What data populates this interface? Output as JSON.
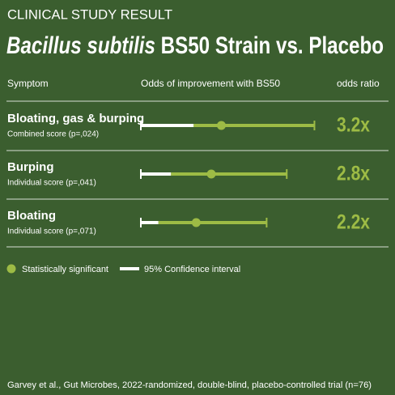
{
  "header": {
    "kicker": "CLINICAL STUDY RESULT",
    "title_italic": "Bacillus subtilis",
    "title_rest": " BS50 Strain vs. Placebo"
  },
  "chart_data": {
    "type": "forest",
    "columns": [
      "Symptom",
      "Odds of improvement with BS50",
      "odds ratio"
    ],
    "categories": [
      "Bloating, gas & burping",
      "Burping",
      "Bloating"
    ],
    "subtitles": [
      "Combined score (p=,024)",
      "Individual score (p=,041)",
      "Individual score (p=,071)"
    ],
    "values": [
      3.2,
      2.8,
      2.2
    ],
    "value_labels": [
      "3.2x",
      "2.8x",
      "2.2x"
    ],
    "ci_low": [
      2.1,
      1.2,
      0.7
    ],
    "ci_high": [
      6.9,
      5.8,
      5.0
    ],
    "xlim": [
      0,
      7.4
    ],
    "color": "#9dbb45",
    "ci_color": "#ffffff",
    "legend": [
      "Statistically significant",
      "95% Confidence interval"
    ]
  },
  "footer": "Garvey et al., Gut Microbes, 2022-randomized, double-blind, placebo-controlled trial (n=76)"
}
